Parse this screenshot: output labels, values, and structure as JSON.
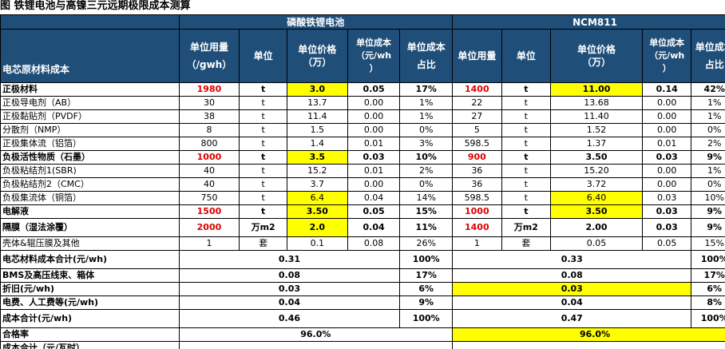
{
  "title": "图  铁锂电池与高镍三元远期极限成本测算",
  "groups": {
    "lfp": "磷酸铁锂电池",
    "ncm": "NCM811"
  },
  "headers": {
    "row_label": "电芯原材料成本",
    "unit_usage": [
      "单位用量",
      "（/gwh）"
    ],
    "unit": "单位",
    "unit_price": [
      "单位价格",
      "（万）"
    ],
    "unit_cost": [
      "单位成本",
      "（元/wh",
      "）"
    ],
    "cost_share": [
      "单位成本",
      "占比"
    ],
    "ncm_unit_usage": "单位用量",
    "ncm_unit": "单位",
    "ncm_unit_price": [
      "单位价格",
      "（万）"
    ],
    "ncm_unit_cost": [
      "单位成本",
      "（元/wh",
      "）"
    ],
    "ncm_cost_share": [
      "单位成本",
      "占比"
    ]
  },
  "rows": [
    {
      "name": "正极材料",
      "bold": true,
      "tall": false,
      "lfp": {
        "usage": "1980",
        "unit": "t",
        "price": "3.0",
        "cost": "0.05",
        "share": "17%"
      },
      "ncm": {
        "usage": "1400",
        "unit": "t",
        "price": "11.00",
        "cost": "0.14",
        "share": "42%"
      },
      "red": true,
      "hl_lfp_price": true,
      "hl_ncm_price": true
    },
    {
      "name": "正极导电剂（AB）",
      "bold": false,
      "tall": false,
      "lfp": {
        "usage": "30",
        "unit": "t",
        "price": "13.7",
        "cost": "0.00",
        "share": "1%"
      },
      "ncm": {
        "usage": "22",
        "unit": "t",
        "price": "13.68",
        "cost": "0.00",
        "share": "1%"
      }
    },
    {
      "name": "正极黏贴剂（PVDF）",
      "bold": false,
      "tall": false,
      "lfp": {
        "usage": "38",
        "unit": "t",
        "price": "11.4",
        "cost": "0.00",
        "share": "1%"
      },
      "ncm": {
        "usage": "27",
        "unit": "t",
        "price": "11.40",
        "cost": "0.00",
        "share": "1%"
      }
    },
    {
      "name": "分散剂（NMP）",
      "bold": false,
      "tall": false,
      "lfp": {
        "usage": "8",
        "unit": "t",
        "price": "1.5",
        "cost": "0.00",
        "share": "0%"
      },
      "ncm": {
        "usage": "5",
        "unit": "t",
        "price": "1.52",
        "cost": "0.00",
        "share": "0%"
      }
    },
    {
      "name": "正极集体流（铝箔）",
      "bold": false,
      "tall": false,
      "lfp": {
        "usage": "800",
        "unit": "t",
        "price": "1.4",
        "cost": "0.01",
        "share": "3%"
      },
      "ncm": {
        "usage": "598.5",
        "unit": "t",
        "price": "1.37",
        "cost": "0.01",
        "share": "2%"
      }
    },
    {
      "name": "负极活性物质（石墨）",
      "bold": true,
      "tall": false,
      "lfp": {
        "usage": "1000",
        "unit": "t",
        "price": "3.5",
        "cost": "0.03",
        "share": "10%"
      },
      "ncm": {
        "usage": "900",
        "unit": "t",
        "price": "3.50",
        "cost": "0.03",
        "share": "9%"
      },
      "red": true,
      "hl_lfp_price": true,
      "hl_ncm_price": false
    },
    {
      "name": "负极粘结剂1(SBR)",
      "bold": false,
      "tall": false,
      "lfp": {
        "usage": "40",
        "unit": "t",
        "price": "15.2",
        "cost": "0.01",
        "share": "2%"
      },
      "ncm": {
        "usage": "36",
        "unit": "t",
        "price": "15.20",
        "cost": "0.00",
        "share": "1%"
      }
    },
    {
      "name": "负极粘结剂2（CMC）",
      "bold": false,
      "tall": false,
      "lfp": {
        "usage": "40",
        "unit": "t",
        "price": "3.7",
        "cost": "0.00",
        "share": "0%"
      },
      "ncm": {
        "usage": "36",
        "unit": "t",
        "price": "3.72",
        "cost": "0.00",
        "share": "0%"
      }
    },
    {
      "name": "负极集流体（铜箔）",
      "bold": false,
      "tall": false,
      "lfp": {
        "usage": "750",
        "unit": "t",
        "price": "6.4",
        "cost": "0.04",
        "share": "14%"
      },
      "ncm": {
        "usage": "598.5",
        "unit": "t",
        "price": "6.40",
        "cost": "0.03",
        "share": "10%"
      },
      "hl_lfp_price": true,
      "hl_ncm_price": true
    },
    {
      "name": "电解液",
      "bold": true,
      "tall": false,
      "lfp": {
        "usage": "1500",
        "unit": "t",
        "price": "3.50",
        "cost": "0.05",
        "share": "15%"
      },
      "ncm": {
        "usage": "1000",
        "unit": "t",
        "price": "3.50",
        "cost": "0.03",
        "share": "9%"
      },
      "red": true,
      "hl_lfp_price": true,
      "hl_ncm_price": true
    },
    {
      "name": "隔膜（湿法涂覆）",
      "bold": true,
      "tall": true,
      "lfp": {
        "usage": "2000",
        "unit": "万m2",
        "price": "2.0",
        "cost": "0.04",
        "share": "11%"
      },
      "ncm": {
        "usage": "1400",
        "unit": "万m2",
        "price": "2.00",
        "cost": "0.03",
        "share": "9%"
      },
      "red": true,
      "hl_lfp_price": true,
      "hl_ncm_price": false
    },
    {
      "name": "壳体&辊压膜及其他",
      "bold": false,
      "tall": false,
      "lfp": {
        "usage": "1",
        "unit": "套",
        "price": "0.1",
        "cost": "0.08",
        "share": "26%"
      },
      "ncm": {
        "usage": "1",
        "unit": "套",
        "price": "0.05",
        "cost": "0.05",
        "share": "15%"
      }
    }
  ],
  "summary": [
    {
      "name": "电芯材料成本合计(元/wh)",
      "lfp_value": "0.31",
      "lfp_share": "100%",
      "ncm_value": "0.33",
      "ncm_share": "100%",
      "tall": true,
      "hl_ncm": false
    },
    {
      "name": "BMS及高压线束、箱体",
      "lfp_value": "0.08",
      "lfp_share": "17%",
      "ncm_value": "0.08",
      "ncm_share": "17%",
      "tall": false,
      "hl_ncm": false
    },
    {
      "name": "折旧(元/wh)",
      "lfp_value": "0.03",
      "lfp_share": "6%",
      "ncm_value": "0.03",
      "ncm_share": "6%",
      "tall": false,
      "hl_ncm": true
    },
    {
      "name": "电费、人工费等(元/wh)",
      "lfp_value": "0.04",
      "lfp_share": "9%",
      "ncm_value": "0.04",
      "ncm_share": "8%",
      "tall": false,
      "hl_ncm": false
    },
    {
      "name": "成本合计(元/wh)",
      "lfp_value": "0.46",
      "lfp_share": "100%",
      "ncm_value": "0.47",
      "ncm_share": "100%",
      "tall": true,
      "hl_ncm": false
    }
  ],
  "yield_row": {
    "name": "合格率",
    "lfp_value": "96.0%",
    "ncm_value": "96.0%"
  },
  "partial_row": {
    "name": "成本合计（元/瓦时）"
  }
}
